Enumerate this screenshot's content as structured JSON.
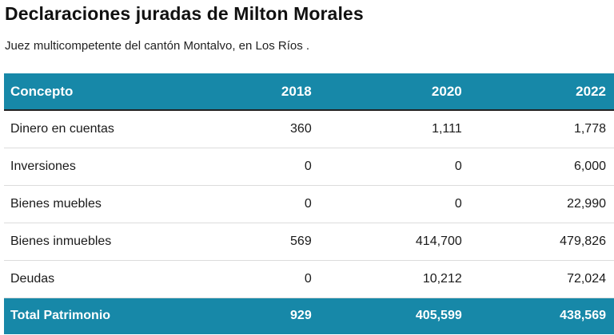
{
  "title": "Declaraciones juradas de Milton Morales",
  "subtitle": "Juez multicompetente del cantón Montalvo, en Los Ríos .",
  "colors": {
    "header_bg": "#1788a8",
    "header_text": "#ffffff",
    "divider": "#dcdcdc"
  },
  "chart_data": {
    "type": "table",
    "title": "Declaraciones juradas de Milton Morales",
    "subtitle": "Juez multicompetente del cantón Montalvo, en Los Ríos .",
    "columns": [
      "Concepto",
      "2018",
      "2020",
      "2022"
    ],
    "rows": [
      {
        "label": "Dinero en cuentas",
        "values": [
          "360",
          "1,111",
          "1,778"
        ]
      },
      {
        "label": "Inversiones",
        "values": [
          "0",
          "0",
          "6,000"
        ]
      },
      {
        "label": "Bienes muebles",
        "values": [
          "0",
          "0",
          "22,990"
        ]
      },
      {
        "label": "Bienes inmuebles",
        "values": [
          "569",
          "414,700",
          "479,826"
        ]
      },
      {
        "label": "Deudas",
        "values": [
          "0",
          "10,212",
          "72,024"
        ]
      }
    ],
    "total": {
      "label": "Total Patrimonio",
      "values": [
        "929",
        "405,599",
        "438,569"
      ]
    }
  }
}
